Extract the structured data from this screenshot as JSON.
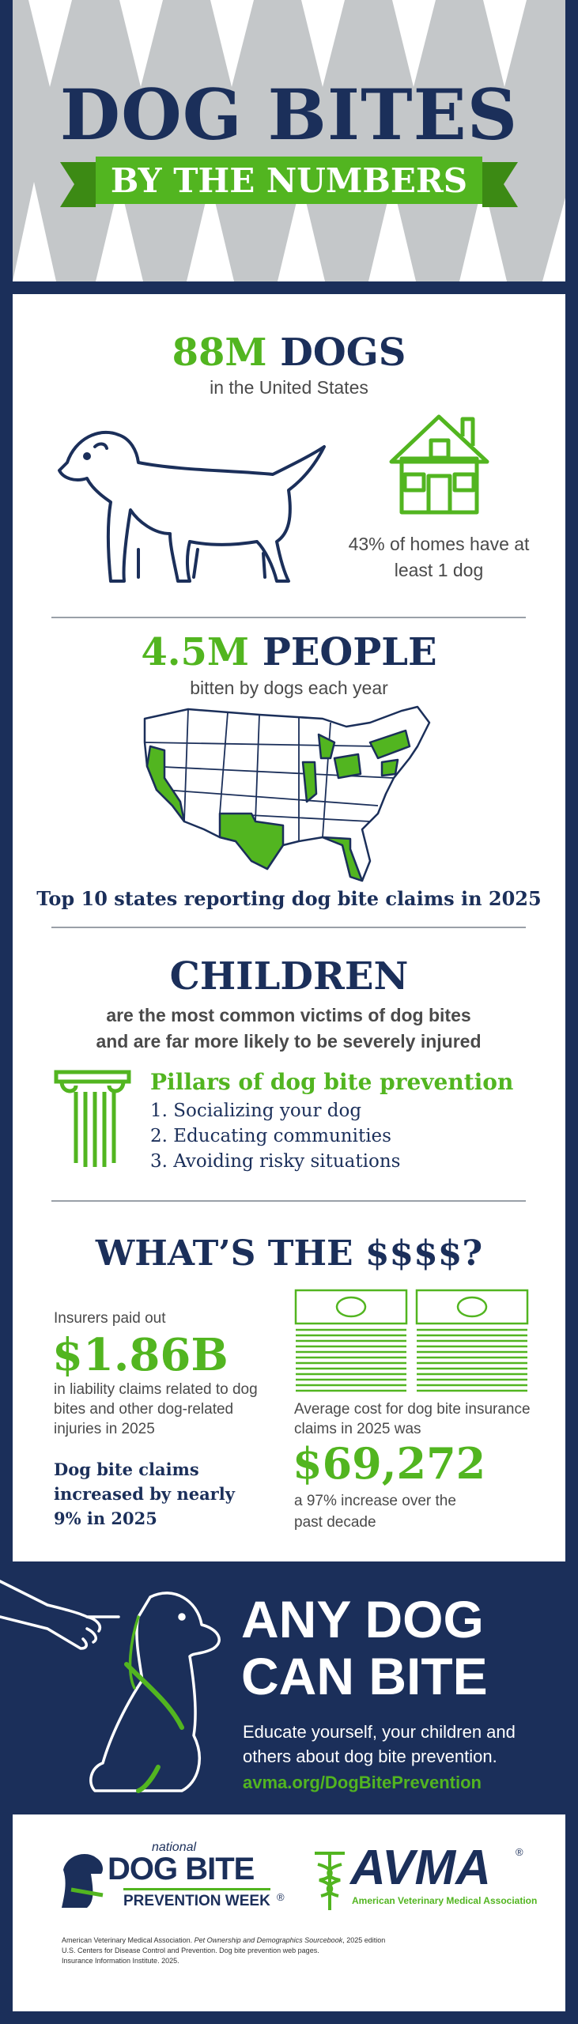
{
  "header": {
    "title": "DOG BITES",
    "subtitle": "BY THE NUMBERS"
  },
  "dogs": {
    "stat": "88M",
    "label": "DOGS",
    "caption": "in the United States",
    "homes": "43% of homes have at least 1 dog"
  },
  "people": {
    "stat": "4.5M",
    "label": "PEOPLE",
    "caption": "bitten by dogs each year",
    "map_caption": "Top 10 states reporting dog bite claims in 2025"
  },
  "children": {
    "title": "CHILDREN",
    "caption": "are the most common victims of dog bites and are far more likely to be severely injured",
    "pillars_title": "Pillars of dog bite prevention",
    "pillars": [
      "1. Socializing your dog",
      "2. Educating communities",
      "3. Avoiding risky situations"
    ]
  },
  "money": {
    "title": "WHAT’S THE $$$$?",
    "intro": "Insurers paid out",
    "total": "$1.86B",
    "total_caption": "in liability claims related to dog bites and other dog-related injuries in 2025",
    "increase": "Dog bite claims increased by nearly 9% in 2025",
    "avg_intro": "Average cost for dog bite insurance claims in 2025 was",
    "avg": "$69,272",
    "avg_caption": "a 97% increase over the past decade"
  },
  "cta": {
    "title_1": "ANY DOG",
    "title_2": "CAN BITE",
    "text": "Educate yourself, your children and others about dog bite prevention.",
    "link": "avma.org/DogBitePrevention"
  },
  "footer": {
    "logo_1": {
      "small": "national",
      "main": "DOG BITE",
      "sub": "PREVENTION WEEK",
      "mark": "®"
    },
    "logo_2": {
      "main": "AVMA",
      "mark": "®",
      "sub": "American Veterinary Medical Association"
    },
    "citations": [
      {
        "author": "American Veterinary Medical Association.",
        "title": "Pet Ownership and Demographics Sourcebook",
        "rest": ", 2025 edition"
      },
      {
        "author": "U.S. Centers for Disease Control and Prevention.",
        "rest": "Dog bite prevention web pages."
      },
      {
        "author": "Insurance Information Institute.",
        "rest": "2025."
      }
    ]
  }
}
